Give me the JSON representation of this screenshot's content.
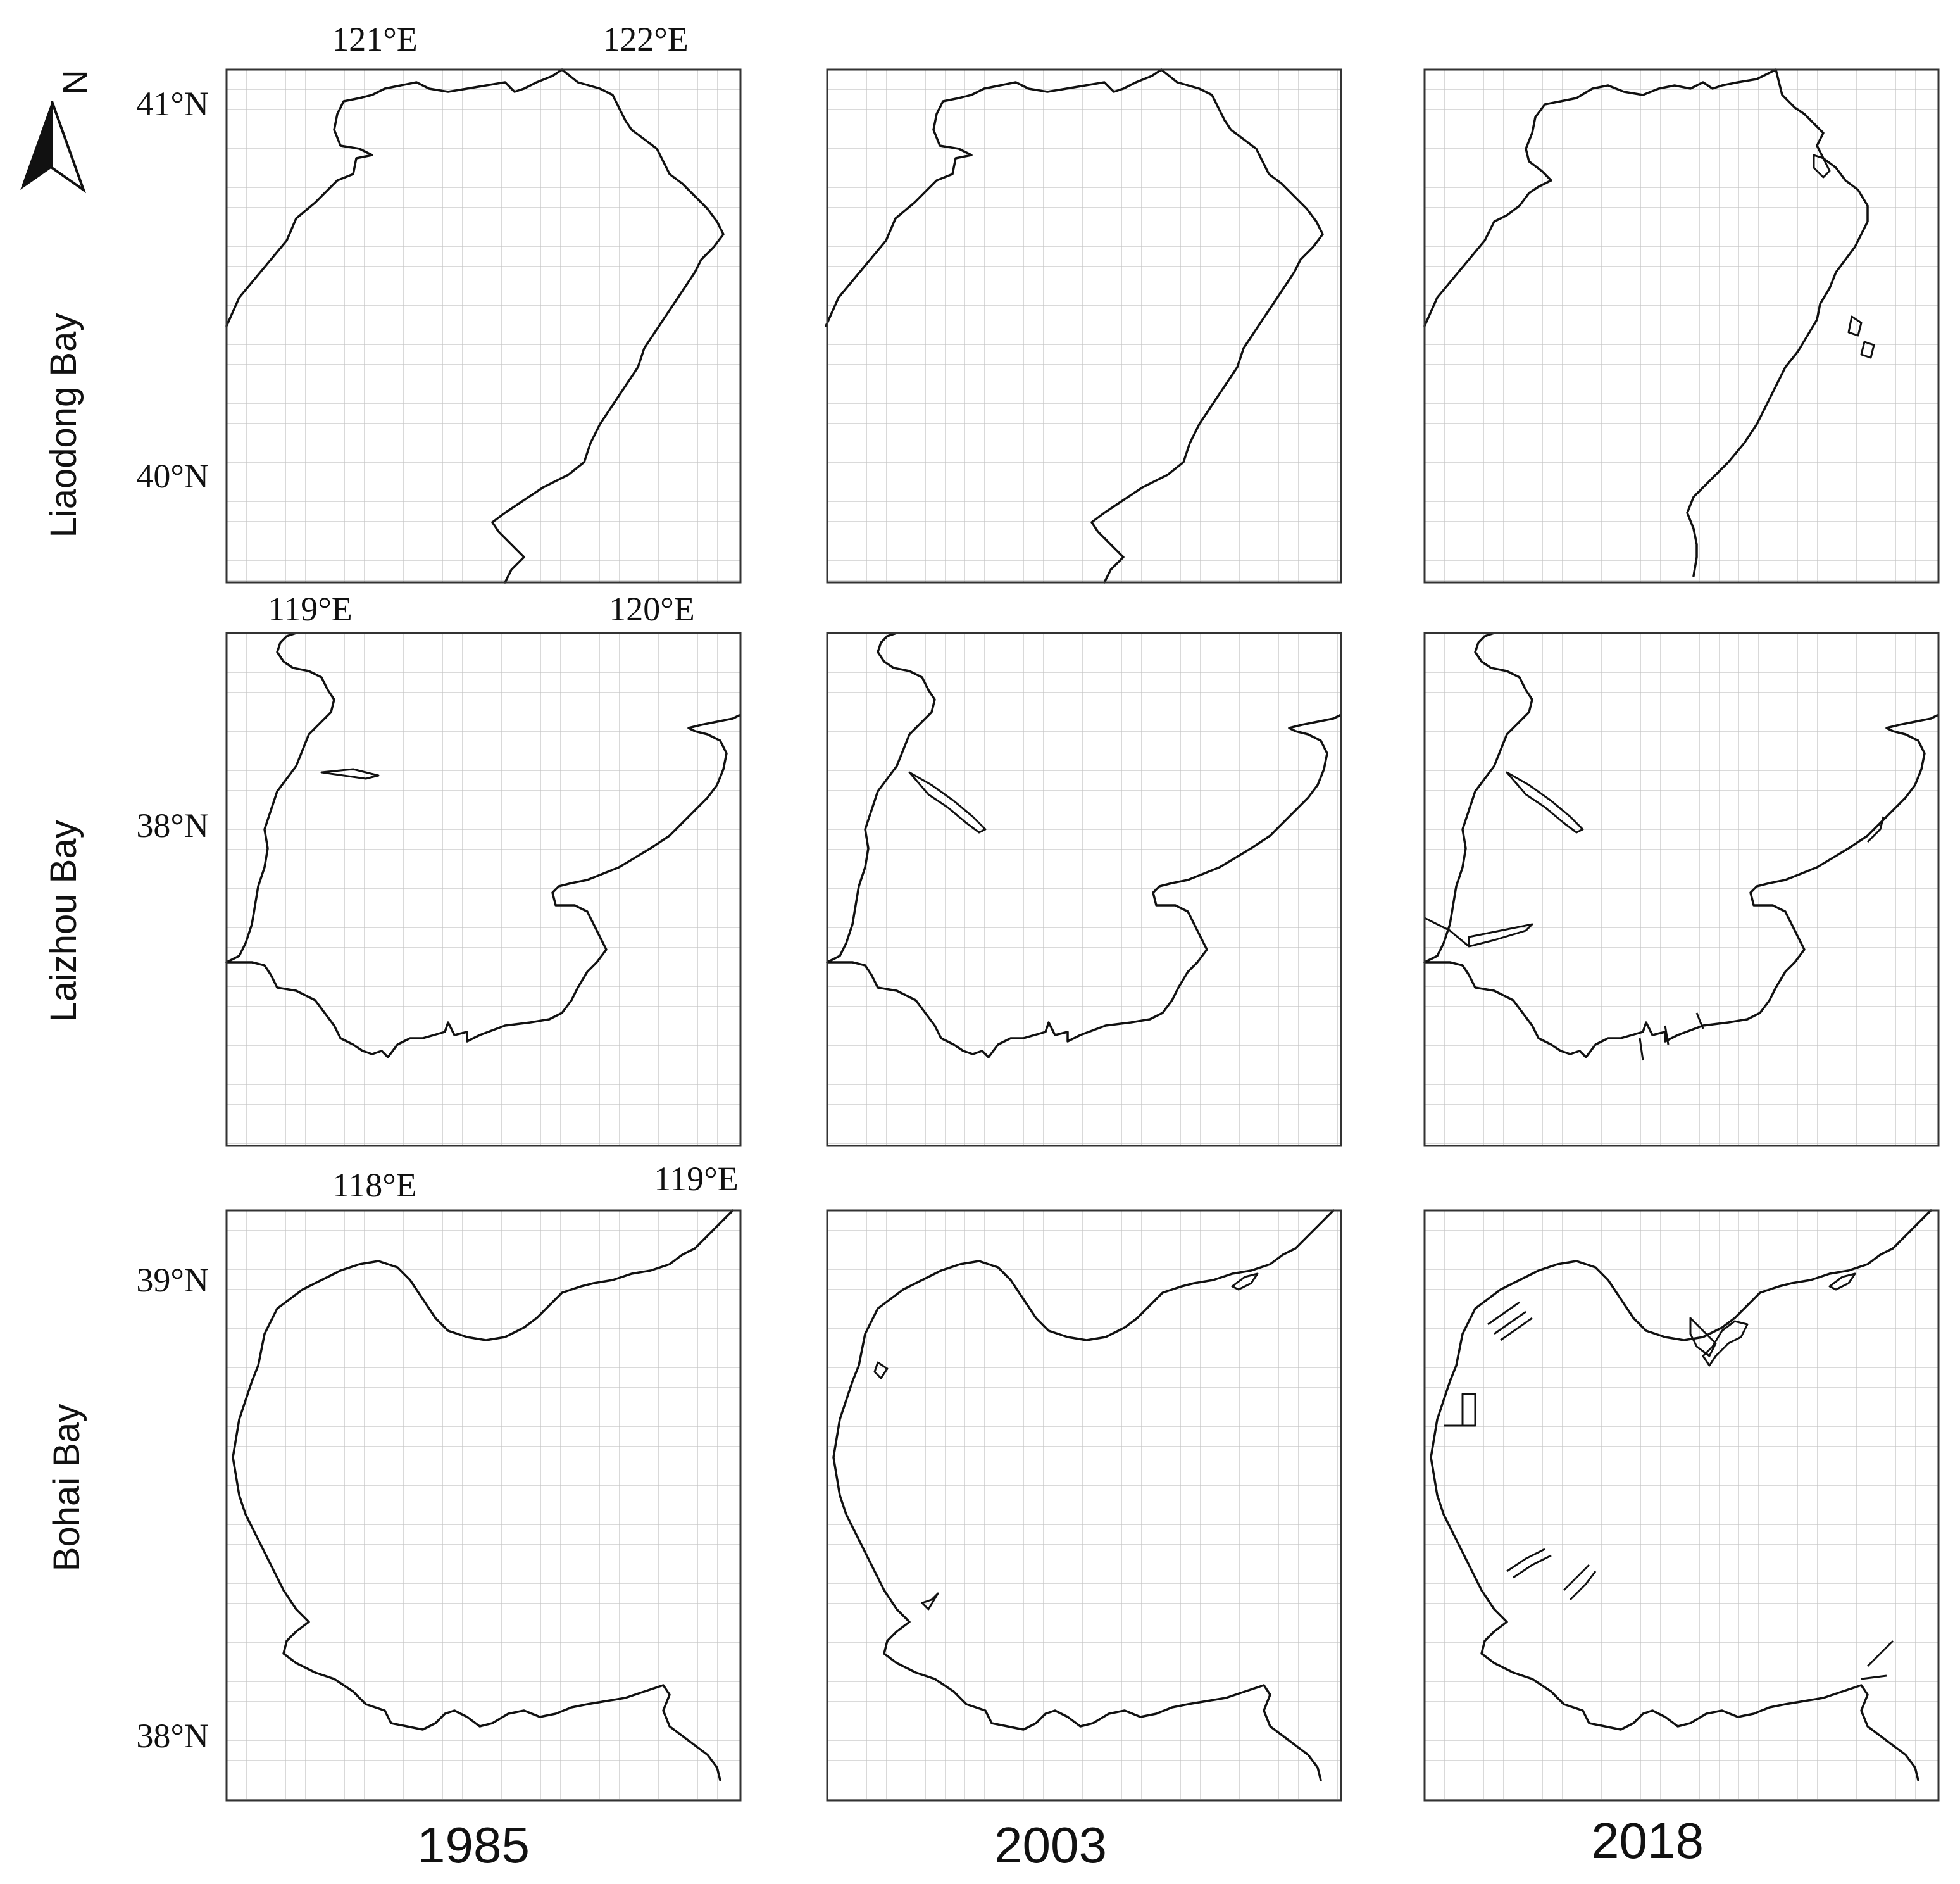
{
  "rows": [
    {
      "label": "Liaodong Bay",
      "lon_labels": [
        "121°E",
        "122°E"
      ],
      "lat_labels": [
        "41°N",
        "40°N"
      ]
    },
    {
      "label": "Laizhou Bay",
      "lon_labels": [
        "119°E",
        "120°E"
      ],
      "lat_labels": [
        "38°N"
      ]
    },
    {
      "label": "Bohai Bay",
      "lon_labels": [
        "118°E",
        "119°E"
      ],
      "lat_labels": [
        "39°N",
        "38°N"
      ]
    }
  ],
  "years": [
    "1985",
    "2003",
    "2018"
  ],
  "north_arrow": {
    "letter": "N",
    "icon": "north-arrow-icon"
  },
  "colors": {
    "coastline": "#111111",
    "grid": "#bdbdbd",
    "frame": "#333333"
  }
}
